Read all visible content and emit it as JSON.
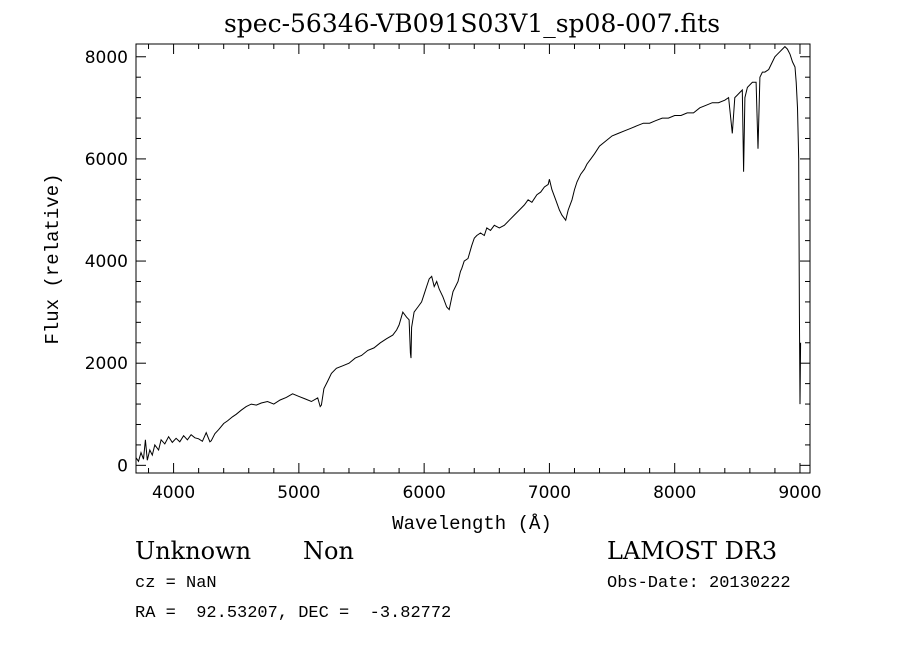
{
  "chart_data": {
    "type": "line",
    "title": "spec-56346-VB091S03V1_sp08-007.fits",
    "xlabel": "Wavelength (Å)",
    "ylabel": "Flux (relative)",
    "xlim": [
      3700,
      9080
    ],
    "ylim": [
      -150,
      8250
    ],
    "x_ticks": [
      4000,
      5000,
      6000,
      7000,
      8000,
      9000
    ],
    "x_tick_labels": [
      "4000",
      "5000",
      "6000",
      "7000",
      "8000",
      "9000"
    ],
    "y_ticks": [
      0,
      2000,
      4000,
      6000,
      8000
    ],
    "y_tick_labels": [
      "0",
      "2000",
      "4000",
      "6000",
      "8000"
    ],
    "grid": false,
    "series": [
      {
        "x": [
          3700,
          3720,
          3740,
          3760,
          3775,
          3790,
          3810,
          3830,
          3850,
          3880,
          3900,
          3930,
          3960,
          3990,
          4020,
          4050,
          4080,
          4110,
          4140,
          4170,
          4200,
          4230,
          4260,
          4290,
          4300,
          4330,
          4360,
          4400,
          4430,
          4470,
          4500,
          4540,
          4580,
          4620,
          4660,
          4700,
          4750,
          4800,
          4850,
          4900,
          4950,
          5000,
          5050,
          5100,
          5150,
          5170,
          5180,
          5200,
          5230,
          5260,
          5300,
          5350,
          5400,
          5450,
          5500,
          5550,
          5600,
          5650,
          5700,
          5750,
          5780,
          5800,
          5830,
          5860,
          5880,
          5890,
          5895,
          5900,
          5920,
          5950,
          5980,
          6000,
          6020,
          6040,
          6060,
          6080,
          6100,
          6120,
          6150,
          6180,
          6200,
          6230,
          6250,
          6270,
          6290,
          6300,
          6320,
          6350,
          6380,
          6400,
          6420,
          6450,
          6480,
          6500,
          6530,
          6560,
          6600,
          6640,
          6680,
          6720,
          6760,
          6800,
          6830,
          6860,
          6900,
          6930,
          6960,
          6990,
          7000,
          7020,
          7050,
          7080,
          7100,
          7130,
          7150,
          7180,
          7200,
          7220,
          7250,
          7280,
          7300,
          7330,
          7360,
          7400,
          7450,
          7500,
          7550,
          7600,
          7650,
          7700,
          7750,
          7800,
          7850,
          7900,
          7950,
          8000,
          8050,
          8100,
          8150,
          8200,
          8250,
          8300,
          8350,
          8400,
          8430,
          8460,
          8480,
          8500,
          8520,
          8540,
          8550,
          8560,
          8580,
          8620,
          8650,
          8665,
          8680,
          8700,
          8720,
          8750,
          8780,
          8800,
          8820,
          8840,
          8860,
          8880,
          8900,
          8920,
          8940,
          8960,
          8970,
          8980,
          8990,
          8995,
          9000,
          9005
        ],
        "y": [
          150,
          80,
          250,
          120,
          500,
          100,
          300,
          200,
          400,
          300,
          500,
          420,
          560,
          450,
          530,
          460,
          580,
          500,
          600,
          540,
          520,
          470,
          640,
          460,
          480,
          620,
          700,
          820,
          870,
          950,
          1000,
          1080,
          1150,
          1200,
          1180,
          1220,
          1250,
          1200,
          1280,
          1330,
          1400,
          1350,
          1300,
          1250,
          1320,
          1150,
          1180,
          1500,
          1650,
          1800,
          1900,
          1950,
          2000,
          2100,
          2150,
          2250,
          2300,
          2400,
          2480,
          2550,
          2650,
          2750,
          3000,
          2900,
          2850,
          2200,
          2100,
          2700,
          3000,
          3100,
          3200,
          3350,
          3500,
          3650,
          3700,
          3500,
          3600,
          3450,
          3300,
          3100,
          3050,
          3400,
          3500,
          3600,
          3800,
          3850,
          4000,
          4050,
          4300,
          4450,
          4500,
          4550,
          4500,
          4650,
          4600,
          4700,
          4650,
          4700,
          4800,
          4900,
          5000,
          5100,
          5200,
          5150,
          5300,
          5350,
          5450,
          5500,
          5600,
          5400,
          5200,
          5000,
          4900,
          4800,
          5000,
          5200,
          5400,
          5550,
          5700,
          5800,
          5900,
          6000,
          6100,
          6250,
          6350,
          6450,
          6500,
          6550,
          6600,
          6650,
          6700,
          6700,
          6750,
          6800,
          6800,
          6850,
          6850,
          6900,
          6900,
          7000,
          7050,
          7100,
          7100,
          7150,
          7200,
          6500,
          7200,
          7250,
          7300,
          7350,
          5750,
          7200,
          7400,
          7500,
          7500,
          6200,
          7600,
          7700,
          7700,
          7750,
          7900,
          8000,
          8050,
          8100,
          8150,
          8200,
          8150,
          8050,
          7900,
          7800,
          7500,
          7000,
          6000,
          3000,
          1200,
          2400
        ]
      }
    ]
  },
  "annotations": {
    "object_class": "Unknown",
    "object_subclass": "Non",
    "redshift": "cz = NaN",
    "coords": "RA =  92.53207, DEC =  -3.82772",
    "survey": "LAMOST DR3",
    "obs_date": "Obs-Date: 20130222"
  }
}
